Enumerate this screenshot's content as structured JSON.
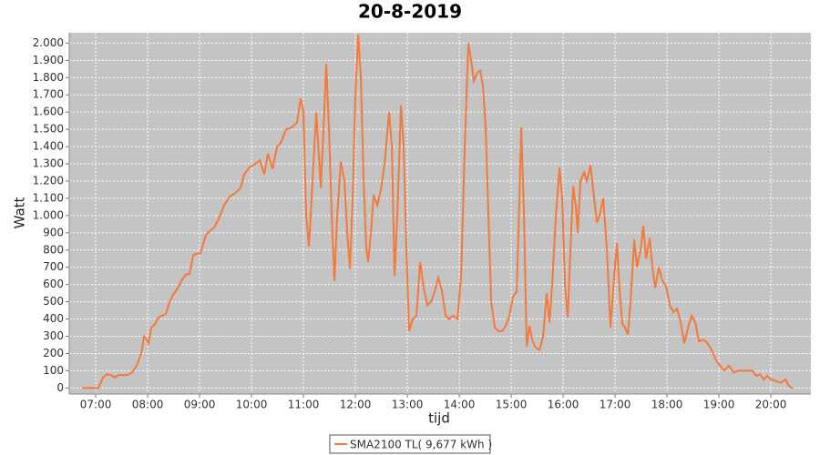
{
  "chart_data": {
    "type": "line",
    "title": "20-8-2019",
    "x_label": "tijd",
    "y_label": "Watt",
    "x": [
      6.737,
      7.053,
      7.14,
      7.211,
      7.298,
      7.368,
      7.439,
      7.614,
      7.702,
      7.789,
      7.877,
      7.93,
      7.982,
      8.018,
      8.07,
      8.14,
      8.211,
      8.281,
      8.351,
      8.421,
      8.491,
      8.579,
      8.667,
      8.737,
      8.807,
      8.877,
      8.947,
      9.018,
      9.123,
      9.193,
      9.281,
      9.368,
      9.474,
      9.579,
      9.684,
      9.789,
      9.86,
      9.965,
      10.07,
      10.158,
      10.246,
      10.316,
      10.404,
      10.491,
      10.561,
      10.667,
      10.772,
      10.877,
      10.947,
      11.0,
      11.053,
      11.105,
      11.175,
      11.246,
      11.333,
      11.386,
      11.439,
      11.491,
      11.544,
      11.596,
      11.649,
      11.719,
      11.789,
      11.842,
      11.895,
      11.947,
      12.0,
      12.053,
      12.105,
      12.158,
      12.211,
      12.246,
      12.298,
      12.351,
      12.421,
      12.491,
      12.561,
      12.649,
      12.702,
      12.754,
      12.807,
      12.877,
      12.93,
      12.982,
      13.035,
      13.105,
      13.175,
      13.246,
      13.316,
      13.386,
      13.456,
      13.526,
      13.596,
      13.667,
      13.737,
      13.807,
      13.877,
      13.965,
      14.035,
      14.105,
      14.175,
      14.228,
      14.281,
      14.351,
      14.404,
      14.456,
      14.509,
      14.561,
      14.614,
      14.684,
      14.754,
      14.825,
      14.895,
      14.965,
      15.035,
      15.105,
      15.158,
      15.193,
      15.246,
      15.298,
      15.351,
      15.404,
      15.456,
      15.544,
      15.614,
      15.684,
      15.737,
      15.789,
      15.86,
      15.93,
      15.982,
      16.035,
      16.088,
      16.14,
      16.193,
      16.246,
      16.281,
      16.333,
      16.404,
      16.456,
      16.526,
      16.596,
      16.649,
      16.702,
      16.772,
      16.842,
      16.912,
      16.982,
      17.035,
      17.088,
      17.14,
      17.193,
      17.246,
      17.298,
      17.368,
      17.421,
      17.491,
      17.544,
      17.596,
      17.667,
      17.719,
      17.772,
      17.842,
      17.912,
      17.982,
      18.053,
      18.123,
      18.193,
      18.263,
      18.333,
      18.404,
      18.474,
      18.544,
      18.614,
      18.684,
      18.754,
      18.842,
      18.947,
      19.018,
      19.105,
      19.193,
      19.281,
      19.368,
      19.544,
      19.649,
      19.719,
      19.789,
      19.86,
      19.93,
      20.0,
      20.105,
      20.193,
      20.281,
      20.351,
      20.421
    ],
    "series": [
      {
        "name": "SMA2100 TL( 9,677 kWh )",
        "color": "#f5793a",
        "values": [
          0,
          0,
          60,
          80,
          75,
          60,
          75,
          75,
          90,
          130,
          200,
          300,
          280,
          260,
          350,
          370,
          410,
          420,
          430,
          500,
          540,
          580,
          630,
          660,
          660,
          770,
          780,
          780,
          890,
          910,
          930,
          980,
          1060,
          1110,
          1130,
          1160,
          1240,
          1280,
          1300,
          1320,
          1240,
          1360,
          1270,
          1400,
          1420,
          1500,
          1510,
          1540,
          1680,
          1600,
          1000,
          820,
          1200,
          1600,
          1160,
          1500,
          1880,
          1500,
          1000,
          620,
          1000,
          1310,
          1200,
          900,
          690,
          1100,
          1700,
          2050,
          1800,
          1200,
          800,
          730,
          900,
          1120,
          1060,
          1150,
          1300,
          1600,
          1400,
          650,
          1000,
          1640,
          1400,
          800,
          330,
          400,
          420,
          730,
          580,
          480,
          500,
          560,
          640,
          560,
          420,
          400,
          420,
          400,
          650,
          1400,
          2000,
          1900,
          1780,
          1830,
          1840,
          1750,
          1500,
          1000,
          500,
          350,
          330,
          330,
          360,
          420,
          530,
          560,
          1100,
          1510,
          1000,
          240,
          360,
          280,
          240,
          220,
          300,
          550,
          380,
          600,
          1000,
          1280,
          1100,
          600,
          410,
          800,
          1170,
          1050,
          900,
          1200,
          1250,
          1200,
          1290,
          1100,
          960,
          1000,
          1100,
          800,
          350,
          650,
          840,
          560,
          370,
          350,
          310,
          500,
          860,
          700,
          800,
          940,
          750,
          870,
          700,
          580,
          700,
          620,
          590,
          480,
          440,
          460,
          380,
          260,
          350,
          420,
          380,
          270,
          280,
          270,
          230,
          160,
          130,
          100,
          130,
          90,
          100,
          100,
          100,
          70,
          80,
          50,
          70,
          50,
          40,
          30,
          50,
          10,
          0
        ]
      }
    ],
    "xlim": [
      6.49,
      20.77
    ],
    "ylim": [
      -35,
      2060
    ],
    "xticks": [
      {
        "value": 7,
        "label": "07:00"
      },
      {
        "value": 8,
        "label": "08:00"
      },
      {
        "value": 9,
        "label": "09:00"
      },
      {
        "value": 10,
        "label": "10:00"
      },
      {
        "value": 11,
        "label": "11:00"
      },
      {
        "value": 12,
        "label": "12:00"
      },
      {
        "value": 13,
        "label": "13:00"
      },
      {
        "value": 14,
        "label": "14:00"
      },
      {
        "value": 15,
        "label": "15:00"
      },
      {
        "value": 16,
        "label": "16:00"
      },
      {
        "value": 17,
        "label": "17:00"
      },
      {
        "value": 18,
        "label": "18:00"
      },
      {
        "value": 19,
        "label": "19:00"
      },
      {
        "value": 20,
        "label": "20:00"
      }
    ],
    "yticks": [
      0,
      100,
      200,
      300,
      400,
      500,
      600,
      700,
      800,
      900,
      {
        "value": 1000,
        "label": "1.000"
      },
      {
        "value": 1100,
        "label": "1.100"
      },
      {
        "value": 1200,
        "label": "1.200"
      },
      {
        "value": 1300,
        "label": "1.300"
      },
      {
        "value": 1400,
        "label": "1.400"
      },
      {
        "value": 1500,
        "label": "1.500"
      },
      {
        "value": 1600,
        "label": "1.600"
      },
      {
        "value": 1700,
        "label": "1.700"
      },
      {
        "value": 1800,
        "label": "1.800"
      },
      {
        "value": 1900,
        "label": "1.900"
      },
      {
        "value": 2000,
        "label": "2.000"
      }
    ],
    "grid": true
  }
}
